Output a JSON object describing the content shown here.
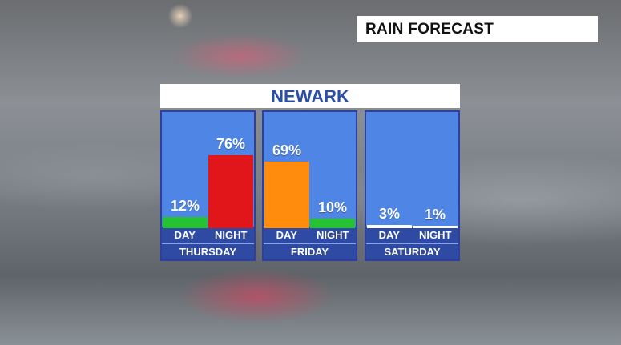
{
  "header": {
    "title": "RAIN FORECAST"
  },
  "city": "NEWARK",
  "chart_data": {
    "type": "bar",
    "title": "RAIN FORECAST",
    "subtitle": "NEWARK",
    "ylim": [
      0,
      100
    ],
    "days": [
      {
        "name": "THURSDAY",
        "periods": [
          {
            "label": "DAY",
            "value": 12,
            "display": "12%",
            "color": "#27c233"
          },
          {
            "label": "NIGHT",
            "value": 76,
            "display": "76%",
            "color": "#e0161b"
          }
        ]
      },
      {
        "name": "FRIDAY",
        "periods": [
          {
            "label": "DAY",
            "value": 69,
            "display": "69%",
            "color": "#ff8c0d"
          },
          {
            "label": "NIGHT",
            "value": 10,
            "display": "10%",
            "color": "#27c233"
          }
        ]
      },
      {
        "name": "SATURDAY",
        "periods": [
          {
            "label": "DAY",
            "value": 3,
            "display": "3%",
            "color": "#ffffff"
          },
          {
            "label": "NIGHT",
            "value": 1,
            "display": "1%",
            "color": "#ffffff"
          }
        ]
      }
    ]
  }
}
